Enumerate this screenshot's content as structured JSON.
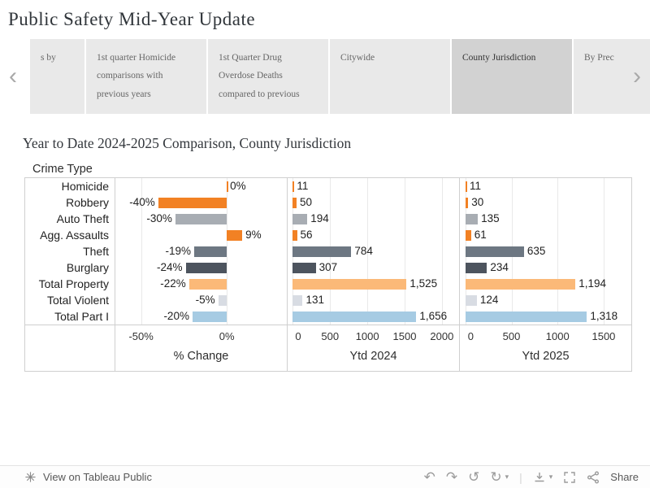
{
  "page": {
    "title": "Public Safety Mid-Year Update"
  },
  "tabs": {
    "prev_arrow": "‹",
    "next_arrow": "›",
    "items": [
      {
        "label": "s by",
        "selected": false
      },
      {
        "label": "1st quarter Homicide comparisons with previous years",
        "selected": false
      },
      {
        "label": "1st Quarter Drug Overdose Deaths compared to previous",
        "selected": false
      },
      {
        "label": "Citywide",
        "selected": false
      },
      {
        "label": "County Jurisdiction",
        "selected": true
      },
      {
        "label": "By Prec",
        "selected": false
      }
    ]
  },
  "chart_data": {
    "type": "bar",
    "title": "Year to Date 2024-2025 Comparison, County Jurisdiction",
    "row_header": "Crime Type",
    "categories": [
      "Homicide",
      "Robbery",
      "Auto Theft",
      "Agg. Assaults",
      "Theft",
      "Burglary",
      "Total Property",
      "Total Violent",
      "Total Part I"
    ],
    "colors": [
      "#f28124",
      "#f28124",
      "#a8adb3",
      "#f28124",
      "#6d7782",
      "#4d545e",
      "#fbb978",
      "#d8dce3",
      "#a6cbe3"
    ],
    "series": [
      {
        "name": "% Change",
        "values": [
          0,
          -40,
          -30,
          9,
          -19,
          -24,
          -22,
          -5,
          -20
        ],
        "labels": [
          "0%",
          "-40%",
          "-30%",
          "9%",
          "-19%",
          "-24%",
          "-22%",
          "-5%",
          "-20%"
        ],
        "axis": {
          "min": -65,
          "max": 35,
          "ticks": [
            -50,
            0
          ],
          "tick_labels": [
            "-50%",
            "0%"
          ]
        }
      },
      {
        "name": "Ytd 2024",
        "values": [
          11,
          50,
          194,
          56,
          784,
          307,
          1525,
          131,
          1656
        ],
        "labels": [
          "11",
          "50",
          "194",
          "56",
          "784",
          "307",
          "1,525",
          "131",
          "1,656"
        ],
        "axis": {
          "min": -70,
          "max": 2230,
          "ticks": [
            0,
            500,
            1000,
            1500,
            2000
          ],
          "tick_labels": [
            "0",
            "500",
            "1000",
            "1500",
            "2000"
          ]
        }
      },
      {
        "name": "Ytd 2025",
        "values": [
          11,
          30,
          135,
          61,
          635,
          234,
          1194,
          124,
          1318
        ],
        "labels": [
          "11",
          "30",
          "135",
          "61",
          "635",
          "234",
          "1,194",
          "124",
          "1,318"
        ],
        "axis": {
          "min": -60,
          "max": 1800,
          "ticks": [
            0,
            500,
            1000,
            1500
          ],
          "tick_labels": [
            "0",
            "500",
            "1000",
            "1500"
          ]
        }
      }
    ]
  },
  "footer": {
    "view_label": "View on Tableau Public",
    "share_label": "Share",
    "glyphs": {
      "undo": "↶",
      "redo": "↷",
      "reset": "↺",
      "replay": "↻",
      "caret": "▾",
      "divider": "|"
    }
  }
}
